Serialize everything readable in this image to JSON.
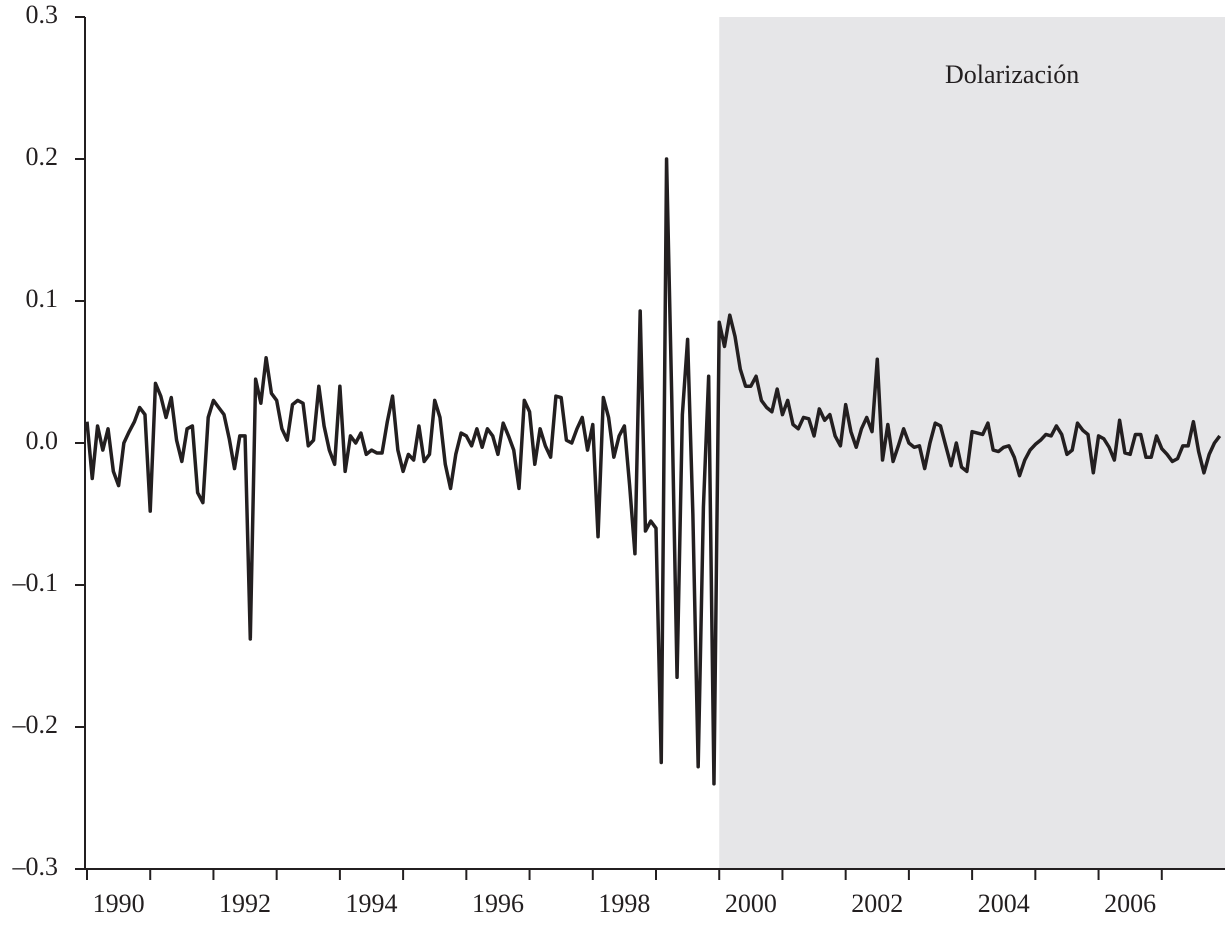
{
  "chart_data": {
    "type": "line",
    "xlim": [
      1990,
      2008
    ],
    "xticks": [
      1990,
      1991,
      1992,
      1993,
      1994,
      1995,
      1996,
      1997,
      1998,
      1999,
      2000,
      2001,
      2002,
      2003,
      2004,
      2005,
      2006,
      2007
    ],
    "ylim": [
      -0.3,
      0.3
    ],
    "yticks": [
      {
        "value": -0.3,
        "label": "–0.3"
      },
      {
        "value": -0.2,
        "label": "–0.2"
      },
      {
        "value": -0.1,
        "label": "–0.1"
      },
      {
        "value": 0,
        "label": "0.0"
      },
      0.1,
      0.2,
      0.3
    ],
    "shade": {
      "xlim": [
        2000,
        2008
      ],
      "label": "Dolarización",
      "color": "#e6e6e8"
    },
    "color": "#231f20",
    "x": [
      1990,
      1990.083,
      1990.167,
      1990.25,
      1990.333,
      1990.417,
      1990.5,
      1990.583,
      1990.667,
      1990.75,
      1990.833,
      1990.917,
      1991,
      1991.083,
      1991.167,
      1991.25,
      1991.333,
      1991.417,
      1991.5,
      1991.583,
      1991.667,
      1991.75,
      1991.833,
      1991.917,
      1992,
      1992.083,
      1992.167,
      1992.25,
      1992.333,
      1992.417,
      1992.5,
      1992.583,
      1992.667,
      1992.75,
      1992.833,
      1992.917,
      1993,
      1993.083,
      1993.167,
      1993.25,
      1993.333,
      1993.417,
      1993.5,
      1993.583,
      1993.667,
      1993.75,
      1993.833,
      1993.917,
      1994,
      1994.083,
      1994.167,
      1994.25,
      1994.333,
      1994.417,
      1994.5,
      1994.583,
      1994.667,
      1994.75,
      1994.833,
      1994.917,
      1995,
      1995.083,
      1995.167,
      1995.25,
      1995.333,
      1995.417,
      1995.5,
      1995.583,
      1995.667,
      1995.75,
      1995.833,
      1995.917,
      1996,
      1996.083,
      1996.167,
      1996.25,
      1996.333,
      1996.417,
      1996.5,
      1996.583,
      1996.667,
      1996.75,
      1996.833,
      1996.917,
      1997,
      1997.083,
      1997.167,
      1997.25,
      1997.333,
      1997.417,
      1997.5,
      1997.583,
      1997.667,
      1997.75,
      1997.833,
      1997.917,
      1998,
      1998.083,
      1998.167,
      1998.25,
      1998.333,
      1998.417,
      1998.5,
      1998.583,
      1998.667,
      1998.75,
      1998.833,
      1998.917,
      1999,
      1999.083,
      1999.167,
      1999.25,
      1999.333,
      1999.417,
      1999.5,
      1999.583,
      1999.667,
      1999.75,
      1999.833,
      1999.917,
      2000,
      2000.083,
      2000.167,
      2000.25,
      2000.333,
      2000.417,
      2000.5,
      2000.583,
      2000.667,
      2000.75,
      2000.833,
      2000.917,
      2001,
      2001.083,
      2001.167,
      2001.25,
      2001.333,
      2001.417,
      2001.5,
      2001.583,
      2001.667,
      2001.75,
      2001.833,
      2001.917,
      2002,
      2002.083,
      2002.167,
      2002.25,
      2002.333,
      2002.417,
      2002.5,
      2002.583,
      2002.667,
      2002.75,
      2002.833,
      2002.917,
      2003,
      2003.083,
      2003.167,
      2003.25,
      2003.333,
      2003.417,
      2003.5,
      2003.583,
      2003.667,
      2003.75,
      2003.833,
      2003.917,
      2004,
      2004.083,
      2004.167,
      2004.25,
      2004.333,
      2004.417,
      2004.5,
      2004.583,
      2004.667,
      2004.75,
      2004.833,
      2004.917,
      2005,
      2005.083,
      2005.167,
      2005.25,
      2005.333,
      2005.417,
      2005.5,
      2005.583,
      2005.667,
      2005.75,
      2005.833,
      2005.917,
      2006,
      2006.083,
      2006.167,
      2006.25,
      2006.333,
      2006.417,
      2006.5,
      2006.583,
      2006.667,
      2006.75,
      2006.833,
      2006.917,
      2007,
      2007.083,
      2007.167,
      2007.25,
      2007.333,
      2007.417,
      2007.5,
      2007.583,
      2007.667,
      2007.75,
      2007.833,
      2007.917
    ],
    "values": [
      0.015,
      -0.025,
      0.012,
      -0.005,
      0.01,
      -0.02,
      -0.03,
      0.0,
      0.008,
      0.015,
      0.025,
      0.02,
      -0.048,
      0.042,
      0.033,
      0.018,
      0.032,
      0.002,
      -0.013,
      0.01,
      0.012,
      -0.035,
      -0.042,
      0.018,
      0.03,
      0.025,
      0.02,
      0.003,
      -0.018,
      0.005,
      0.005,
      -0.138,
      0.045,
      0.028,
      0.06,
      0.035,
      0.03,
      0.01,
      0.002,
      0.027,
      0.03,
      0.028,
      -0.002,
      0.002,
      0.04,
      0.012,
      -0.005,
      -0.015,
      0.04,
      -0.02,
      0.005,
      0.0,
      0.007,
      -0.008,
      -0.005,
      -0.007,
      -0.007,
      0.015,
      0.033,
      -0.005,
      -0.02,
      -0.008,
      -0.012,
      0.012,
      -0.013,
      -0.008,
      0.03,
      0.018,
      -0.015,
      -0.032,
      -0.008,
      0.007,
      0.005,
      -0.002,
      0.01,
      -0.003,
      0.01,
      0.005,
      -0.008,
      0.014,
      0.005,
      -0.005,
      -0.032,
      0.03,
      0.022,
      -0.015,
      0.01,
      -0.002,
      -0.01,
      0.033,
      0.032,
      0.002,
      0.0,
      0.01,
      0.018,
      -0.005,
      0.013,
      -0.066,
      0.032,
      0.018,
      -0.01,
      0.005,
      0.012,
      -0.03,
      -0.078,
      0.093,
      -0.062,
      -0.055,
      -0.06,
      -0.225,
      0.2,
      0.03,
      -0.165,
      0.02,
      0.073,
      -0.05,
      -0.228,
      -0.045,
      0.047,
      -0.24,
      0.085,
      0.068,
      0.09,
      0.075,
      0.052,
      0.04,
      0.04,
      0.047,
      0.03,
      0.025,
      0.022,
      0.038,
      0.02,
      0.03,
      0.013,
      0.01,
      0.018,
      0.017,
      0.005,
      0.024,
      0.016,
      0.02,
      0.005,
      -0.002,
      0.027,
      0.008,
      -0.003,
      0.01,
      0.018,
      0.008,
      0.059,
      -0.012,
      0.013,
      -0.013,
      -0.002,
      0.01,
      0.0,
      -0.003,
      -0.002,
      -0.018,
      0.0,
      0.014,
      0.012,
      -0.002,
      -0.016,
      0.0,
      -0.017,
      -0.02,
      0.008,
      0.007,
      0.006,
      0.014,
      -0.005,
      -0.006,
      -0.003,
      -0.002,
      -0.01,
      -0.023,
      -0.012,
      -0.005,
      -0.001,
      0.002,
      0.006,
      0.005,
      0.012,
      0.006,
      -0.008,
      -0.005,
      0.014,
      0.009,
      0.006,
      -0.021,
      0.005,
      0.003,
      -0.003,
      -0.012,
      0.016,
      -0.007,
      -0.008,
      0.006,
      0.006,
      -0.01,
      -0.01,
      0.005,
      -0.004,
      -0.008,
      -0.013,
      -0.011,
      -0.002,
      -0.002,
      0.015,
      -0.006,
      -0.021,
      -0.008,
      0.0,
      0.005
    ]
  }
}
